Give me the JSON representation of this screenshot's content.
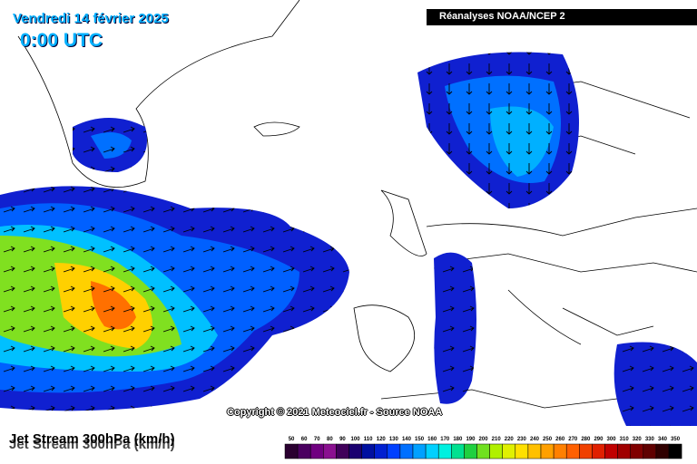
{
  "header": {
    "date": "Vendredi 14 février 2025",
    "time": "0:00 UTC",
    "source": "Réanalyses NOAA/NCEP 2"
  },
  "copyright": "Copyright © 2021 Meteociel.fr - Source NOAA",
  "legend": {
    "title": "Jet Stream 300hPa (km/h)",
    "labels": [
      50,
      60,
      70,
      80,
      90,
      100,
      110,
      120,
      130,
      140,
      150,
      160,
      170,
      180,
      190,
      200,
      210,
      220,
      230,
      240,
      250,
      260,
      270,
      280,
      290,
      300,
      310,
      320,
      330,
      340,
      350
    ],
    "colors": [
      "#2a0030",
      "#4a0060",
      "#700080",
      "#8a1090",
      "#40005a",
      "#1a0070",
      "#0010a0",
      "#0020d0",
      "#0040ff",
      "#0070ff",
      "#00a0ff",
      "#00d0ff",
      "#00f0e0",
      "#00e090",
      "#20d040",
      "#70e020",
      "#b0f000",
      "#e0f000",
      "#ffe000",
      "#ffc000",
      "#ffa000",
      "#ff8000",
      "#ff6000",
      "#f04000",
      "#e02000",
      "#c00000",
      "#a00000",
      "#800000",
      "#600000",
      "#300000",
      "#000000"
    ]
  }
}
